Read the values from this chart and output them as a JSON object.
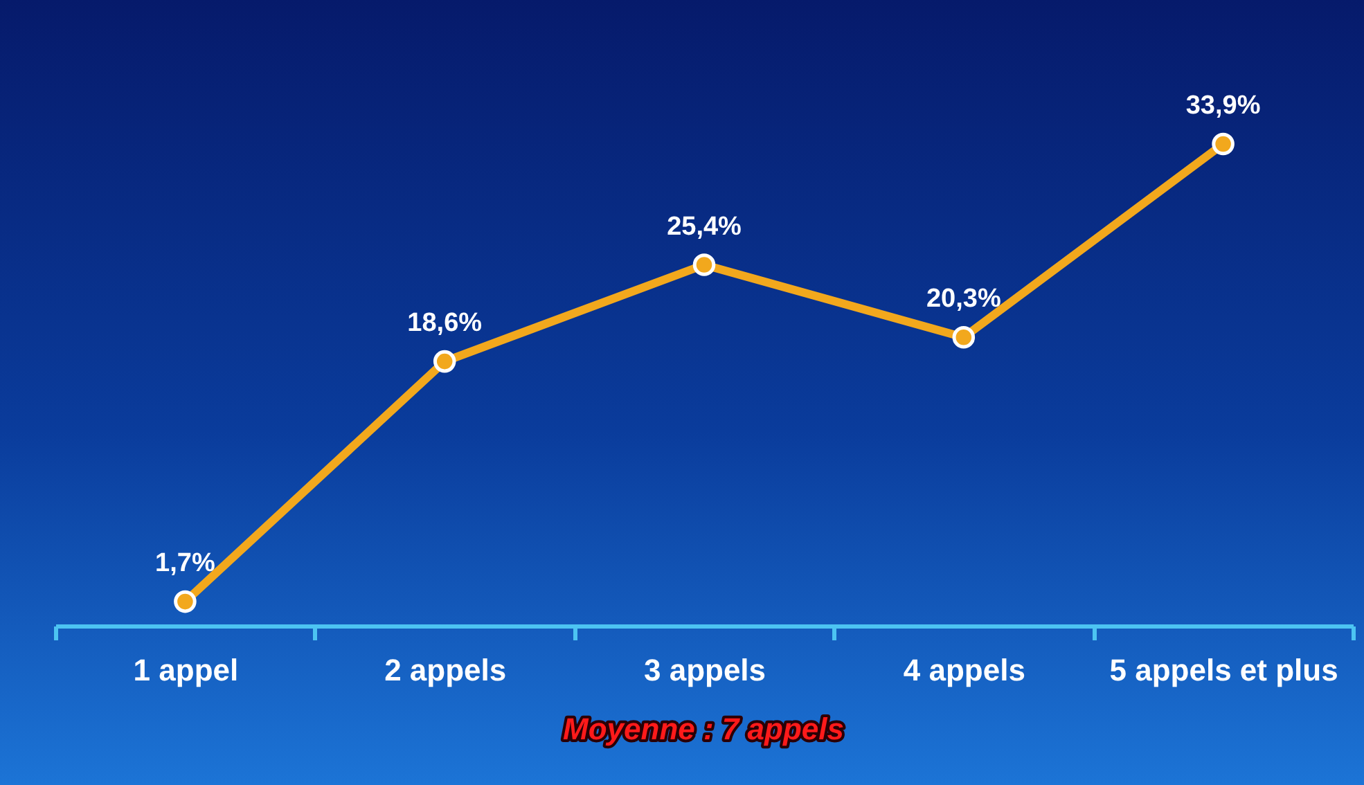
{
  "chart_data": {
    "type": "line",
    "categories": [
      "1 appel",
      "2 appels",
      "3 appels",
      "4 appels",
      "5 appels et plus"
    ],
    "series": [
      {
        "color": "#f2a81d",
        "values": [
          1.7,
          18.6,
          25.4,
          20.3,
          33.9
        ],
        "value_labels": [
          "1,7%",
          "18,6%",
          "25,4%",
          "20,3%",
          "33,9%"
        ]
      }
    ],
    "marker": "circle",
    "tick_labels": "x",
    "legend": false,
    "annotations": [
      "Moyenne : 7 appels"
    ]
  }
}
